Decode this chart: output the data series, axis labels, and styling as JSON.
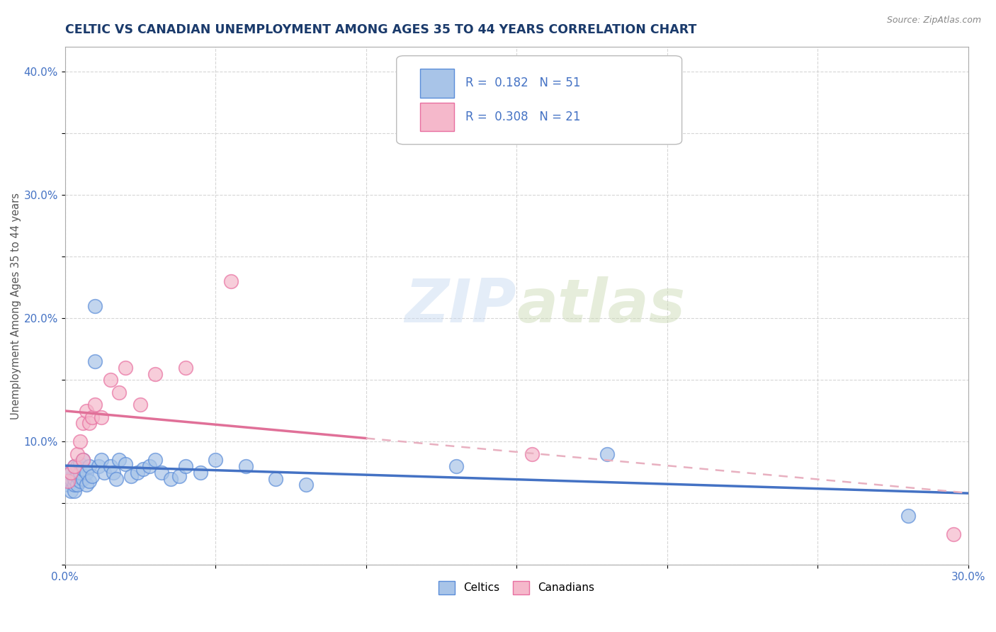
{
  "title": "CELTIC VS CANADIAN UNEMPLOYMENT AMONG AGES 35 TO 44 YEARS CORRELATION CHART",
  "source": "Source: ZipAtlas.com",
  "ylabel": "Unemployment Among Ages 35 to 44 years",
  "xlim": [
    0.0,
    0.3
  ],
  "ylim": [
    0.0,
    0.42
  ],
  "xtick_vals": [
    0.0,
    0.05,
    0.1,
    0.15,
    0.2,
    0.25,
    0.3
  ],
  "xtick_labels": [
    "0.0%",
    "",
    "",
    "",
    "",
    "",
    "30.0%"
  ],
  "ytick_vals": [
    0.0,
    0.05,
    0.1,
    0.15,
    0.2,
    0.25,
    0.3,
    0.35,
    0.4
  ],
  "ytick_labels": [
    "",
    "",
    "10.0%",
    "",
    "20.0%",
    "",
    "30.0%",
    "",
    "40.0%"
  ],
  "celtics_color": "#a8c4e8",
  "canadians_color": "#f5b8cb",
  "celtics_edge_color": "#5b8dd9",
  "canadians_edge_color": "#e86fa0",
  "celtics_line_color": "#4472c4",
  "canadians_line_color": "#e07098",
  "canadians_dash_color": "#e8b0c0",
  "R_celtics": 0.182,
  "N_celtics": 51,
  "R_canadians": 0.308,
  "N_canadians": 21,
  "watermark": "ZIPatlas",
  "celtics_x": [
    0.001,
    0.001,
    0.001,
    0.002,
    0.002,
    0.002,
    0.003,
    0.003,
    0.003,
    0.003,
    0.004,
    0.004,
    0.004,
    0.005,
    0.005,
    0.005,
    0.006,
    0.006,
    0.006,
    0.007,
    0.007,
    0.008,
    0.008,
    0.009,
    0.01,
    0.01,
    0.011,
    0.012,
    0.013,
    0.015,
    0.016,
    0.017,
    0.018,
    0.02,
    0.022,
    0.024,
    0.026,
    0.028,
    0.03,
    0.032,
    0.035,
    0.038,
    0.04,
    0.045,
    0.05,
    0.06,
    0.07,
    0.08,
    0.13,
    0.18,
    0.28
  ],
  "celtics_y": [
    0.065,
    0.07,
    0.075,
    0.06,
    0.07,
    0.075,
    0.06,
    0.065,
    0.07,
    0.08,
    0.065,
    0.072,
    0.08,
    0.068,
    0.075,
    0.082,
    0.07,
    0.078,
    0.085,
    0.065,
    0.075,
    0.068,
    0.08,
    0.072,
    0.165,
    0.21,
    0.08,
    0.085,
    0.075,
    0.08,
    0.075,
    0.07,
    0.085,
    0.082,
    0.072,
    0.075,
    0.078,
    0.08,
    0.085,
    0.075,
    0.07,
    0.072,
    0.08,
    0.075,
    0.085,
    0.08,
    0.07,
    0.065,
    0.08,
    0.09,
    0.04
  ],
  "canadians_x": [
    0.001,
    0.002,
    0.003,
    0.004,
    0.005,
    0.006,
    0.006,
    0.007,
    0.008,
    0.009,
    0.01,
    0.012,
    0.015,
    0.018,
    0.02,
    0.025,
    0.03,
    0.04,
    0.055,
    0.155,
    0.295
  ],
  "canadians_y": [
    0.068,
    0.075,
    0.08,
    0.09,
    0.1,
    0.085,
    0.115,
    0.125,
    0.115,
    0.12,
    0.13,
    0.12,
    0.15,
    0.14,
    0.16,
    0.13,
    0.155,
    0.16,
    0.23,
    0.09,
    0.025
  ]
}
